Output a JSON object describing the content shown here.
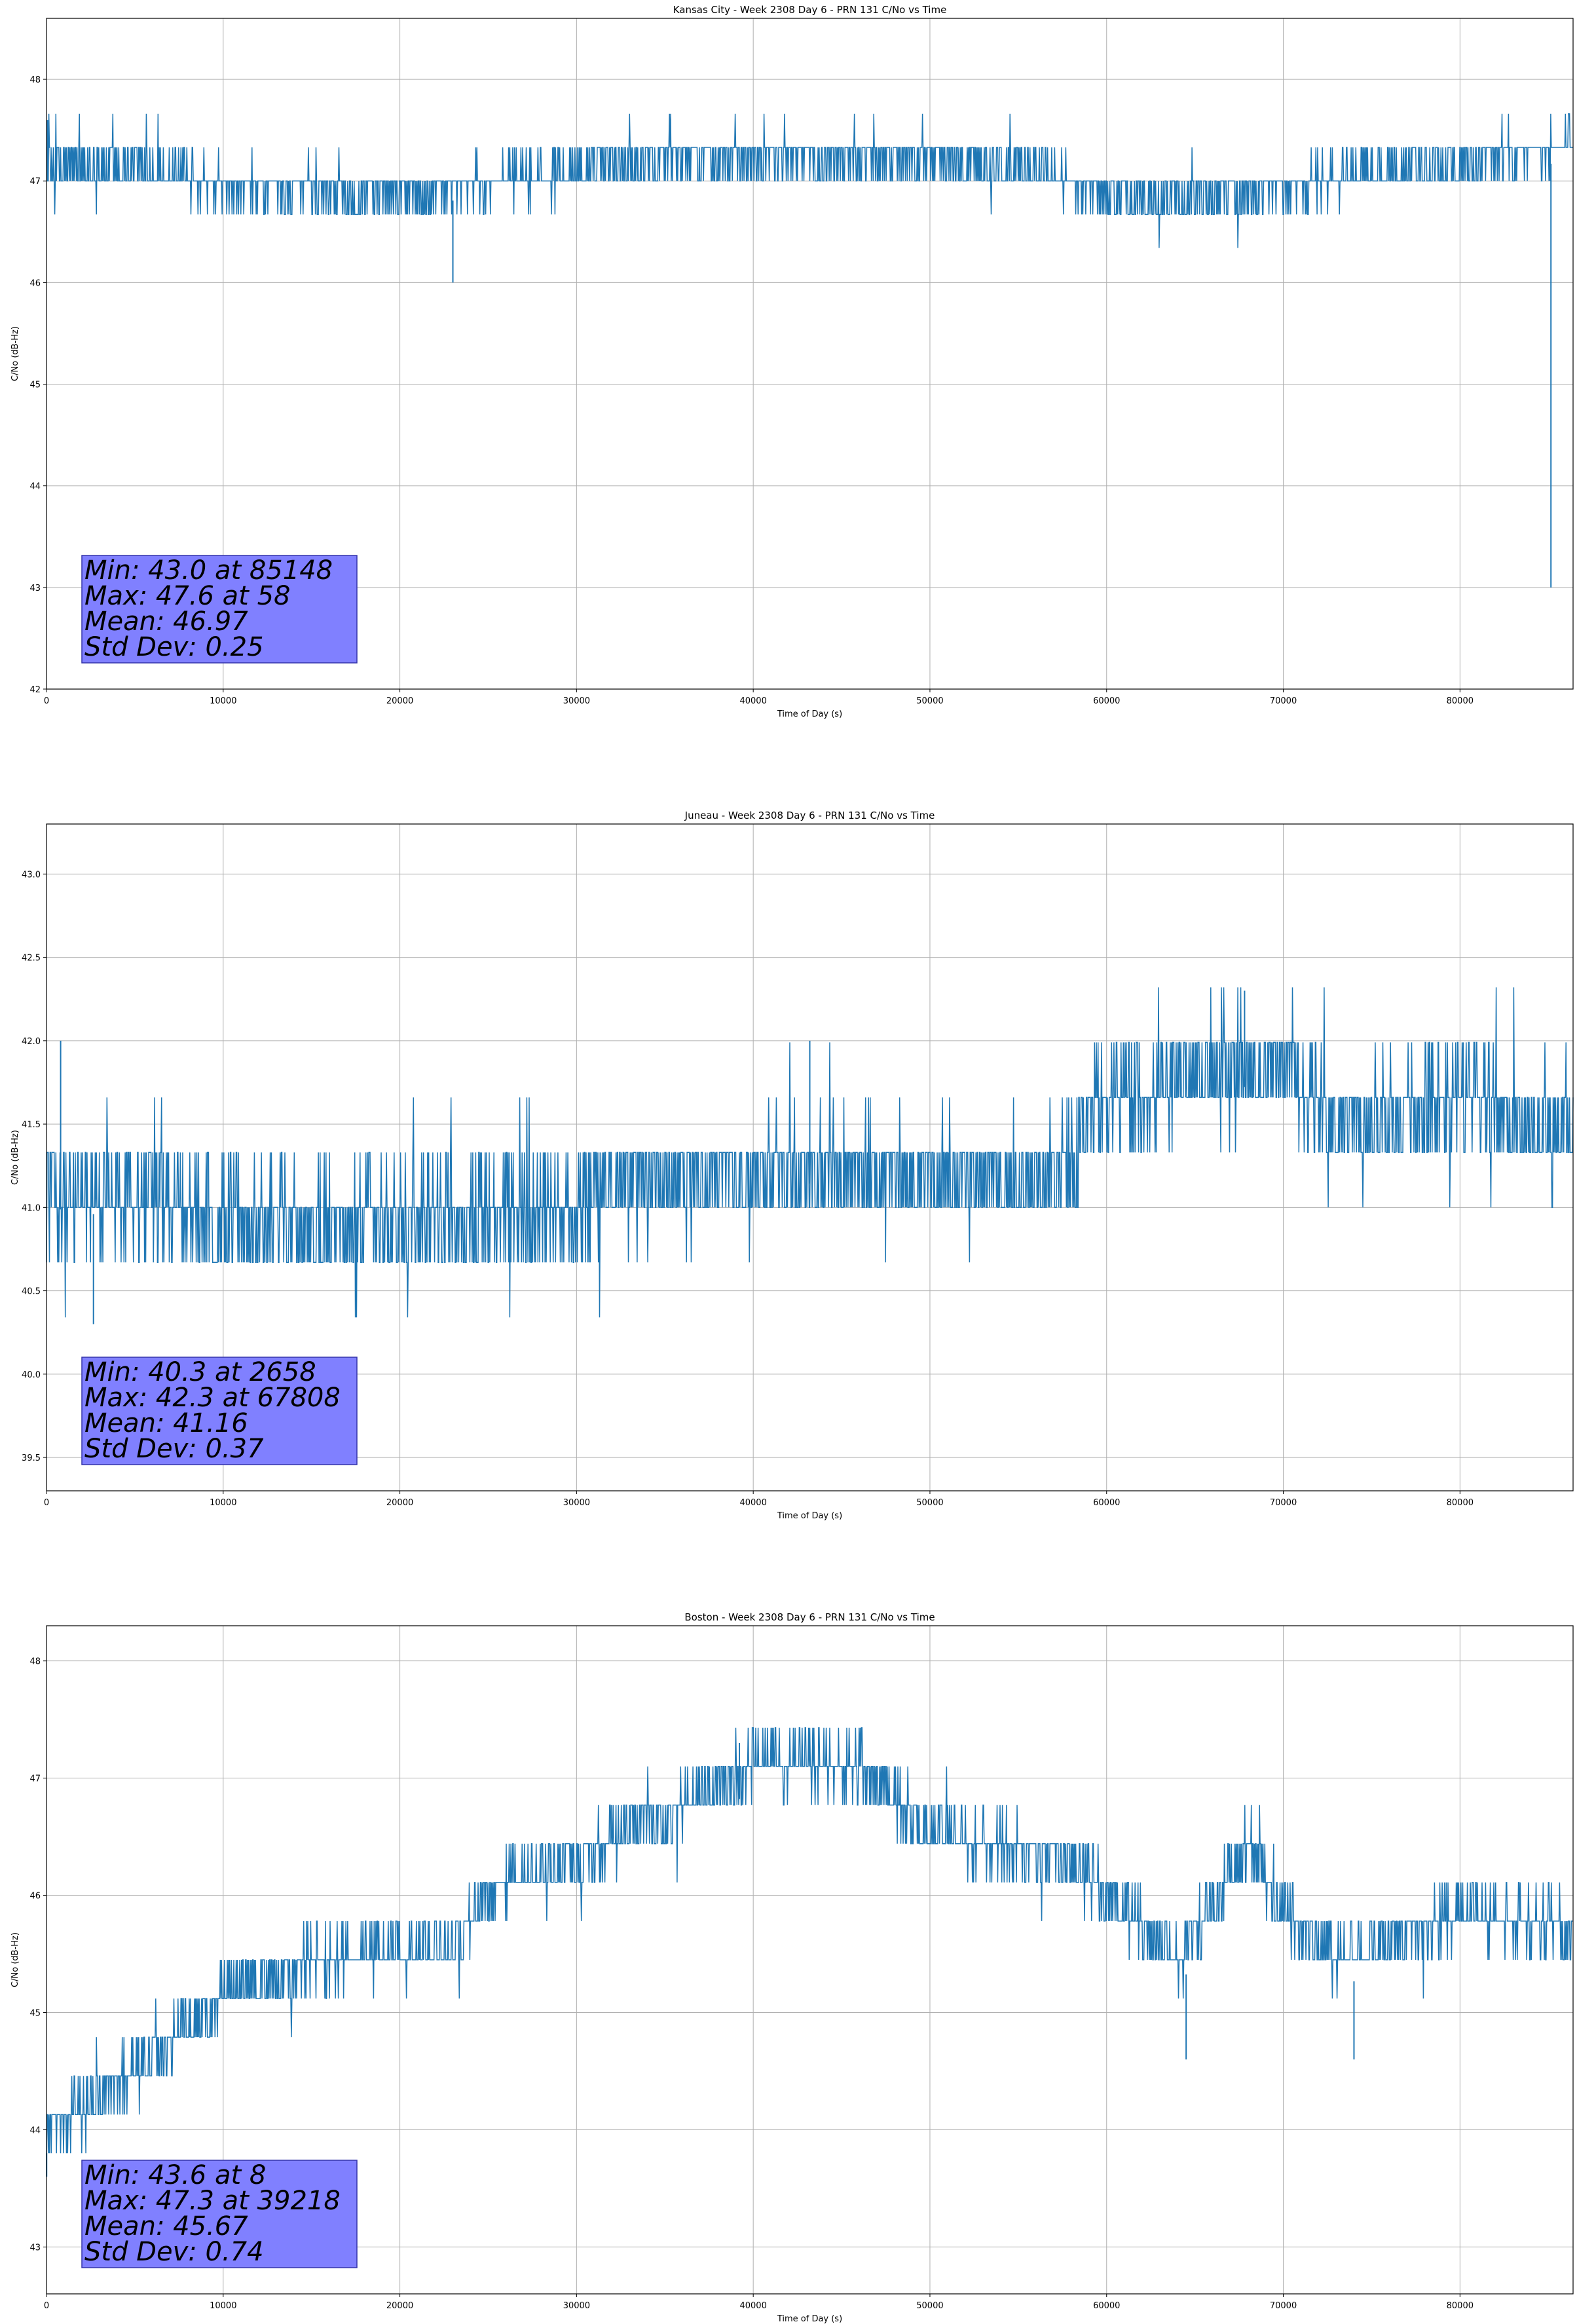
{
  "chart_data": [
    {
      "type": "line",
      "title": "Kansas City - Week 2308 Day 6 - PRN 131 C/No vs Time",
      "xlabel": "Time of Day (s)",
      "ylabel": "C/No (dB-Hz)",
      "xlim": [
        0,
        86400
      ],
      "ylim": [
        42.0,
        48.6
      ],
      "xticks": [
        0,
        10000,
        20000,
        30000,
        40000,
        50000,
        60000,
        70000,
        80000
      ],
      "yticks": [
        42,
        43,
        44,
        45,
        46,
        47,
        48
      ],
      "ytick_labels": [
        "42",
        "43",
        "44",
        "45",
        "46",
        "47",
        "48"
      ],
      "grid": true,
      "color": "#1f77b4",
      "quant": 0.33,
      "trend": [
        [
          0,
          47.0
        ],
        [
          5000,
          47.0
        ],
        [
          10000,
          46.8
        ],
        [
          20000,
          46.75
        ],
        [
          28000,
          46.9
        ],
        [
          35000,
          47.1
        ],
        [
          47000,
          47.15
        ],
        [
          55000,
          47.0
        ],
        [
          62000,
          46.65
        ],
        [
          70000,
          46.8
        ],
        [
          78000,
          47.0
        ],
        [
          86400,
          47.2
        ]
      ],
      "noise": 0.2,
      "spikes": [
        {
          "x": 85148,
          "y": 43.0
        },
        {
          "x": 58,
          "y": 47.6
        },
        {
          "x": 23000,
          "y": 46.0
        }
      ],
      "stats": [
        "Min: 43.0 at 85148",
        "Max: 47.6 at 58",
        "Mean: 46.97",
        "Std Dev: 0.25"
      ]
    },
    {
      "type": "line",
      "title": "Juneau - Week 2308 Day 6 - PRN 131 C/No vs Time",
      "xlabel": "Time of Day (s)",
      "ylabel": "C/No (dB-Hz)",
      "xlim": [
        0,
        86400
      ],
      "ylim": [
        39.3,
        43.3
      ],
      "xticks": [
        0,
        10000,
        20000,
        30000,
        40000,
        50000,
        60000,
        70000,
        80000
      ],
      "yticks": [
        39.5,
        40.0,
        40.5,
        41.0,
        41.5,
        42.0,
        42.5,
        43.0
      ],
      "ytick_labels": [
        "39.5",
        "40.0",
        "40.5",
        "41.0",
        "41.5",
        "42.0",
        "42.5",
        "43.0"
      ],
      "grid": true,
      "color": "#1f77b4",
      "quant": 0.33,
      "trend": [
        [
          0,
          41.0
        ],
        [
          10000,
          40.85
        ],
        [
          20000,
          40.85
        ],
        [
          30000,
          40.9
        ],
        [
          32000,
          41.1
        ],
        [
          45000,
          41.15
        ],
        [
          50000,
          41.1
        ],
        [
          57000,
          41.05
        ],
        [
          59000,
          41.45
        ],
        [
          62000,
          41.65
        ],
        [
          70000,
          41.75
        ],
        [
          73000,
          41.45
        ],
        [
          80000,
          41.55
        ],
        [
          86400,
          41.3
        ]
      ],
      "noise": 0.3,
      "spikes": [
        {
          "x": 2658,
          "y": 40.3
        },
        {
          "x": 67808,
          "y": 42.3
        },
        {
          "x": 800,
          "y": 42.0
        },
        {
          "x": 43200,
          "y": 42.0
        }
      ],
      "stats": [
        "Min: 40.3 at 2658",
        "Max: 42.3 at 67808",
        "Mean: 41.16",
        "Std Dev: 0.37"
      ]
    },
    {
      "type": "line",
      "title": "Boston - Week 2308 Day 6 - PRN 131 C/No vs Time",
      "xlabel": "Time of Day (s)",
      "ylabel": "C/No (dB-Hz)",
      "xlim": [
        0,
        86400
      ],
      "ylim": [
        42.6,
        48.3
      ],
      "xticks": [
        0,
        10000,
        20000,
        30000,
        40000,
        50000,
        60000,
        70000,
        80000
      ],
      "yticks": [
        43,
        44,
        45,
        46,
        47,
        48
      ],
      "ytick_labels": [
        "43",
        "44",
        "45",
        "46",
        "47",
        "48"
      ],
      "grid": true,
      "color": "#1f77b4",
      "quant": 0.33,
      "trend": [
        [
          0,
          43.8
        ],
        [
          2000,
          43.9
        ],
        [
          5000,
          44.3
        ],
        [
          10000,
          44.9
        ],
        [
          15000,
          45.2
        ],
        [
          23000,
          45.3
        ],
        [
          25000,
          45.8
        ],
        [
          30000,
          46.1
        ],
        [
          35000,
          46.4
        ],
        [
          40000,
          46.9
        ],
        [
          46000,
          46.85
        ],
        [
          50000,
          46.3
        ],
        [
          57000,
          46.1
        ],
        [
          60000,
          45.8
        ],
        [
          64000,
          45.2
        ],
        [
          66000,
          45.7
        ],
        [
          68000,
          46.2
        ],
        [
          70000,
          45.6
        ],
        [
          73000,
          45.2
        ],
        [
          76000,
          45.4
        ],
        [
          80000,
          45.6
        ],
        [
          86400,
          45.5
        ]
      ],
      "noise": 0.22,
      "spikes": [
        {
          "x": 8,
          "y": 43.6
        },
        {
          "x": 39218,
          "y": 47.3
        },
        {
          "x": 64500,
          "y": 44.6
        },
        {
          "x": 74000,
          "y": 44.6
        }
      ],
      "stats": [
        "Min: 43.6 at 8",
        "Max: 47.3 at 39218",
        "Mean: 45.67",
        "Std Dev: 0.74"
      ]
    }
  ]
}
